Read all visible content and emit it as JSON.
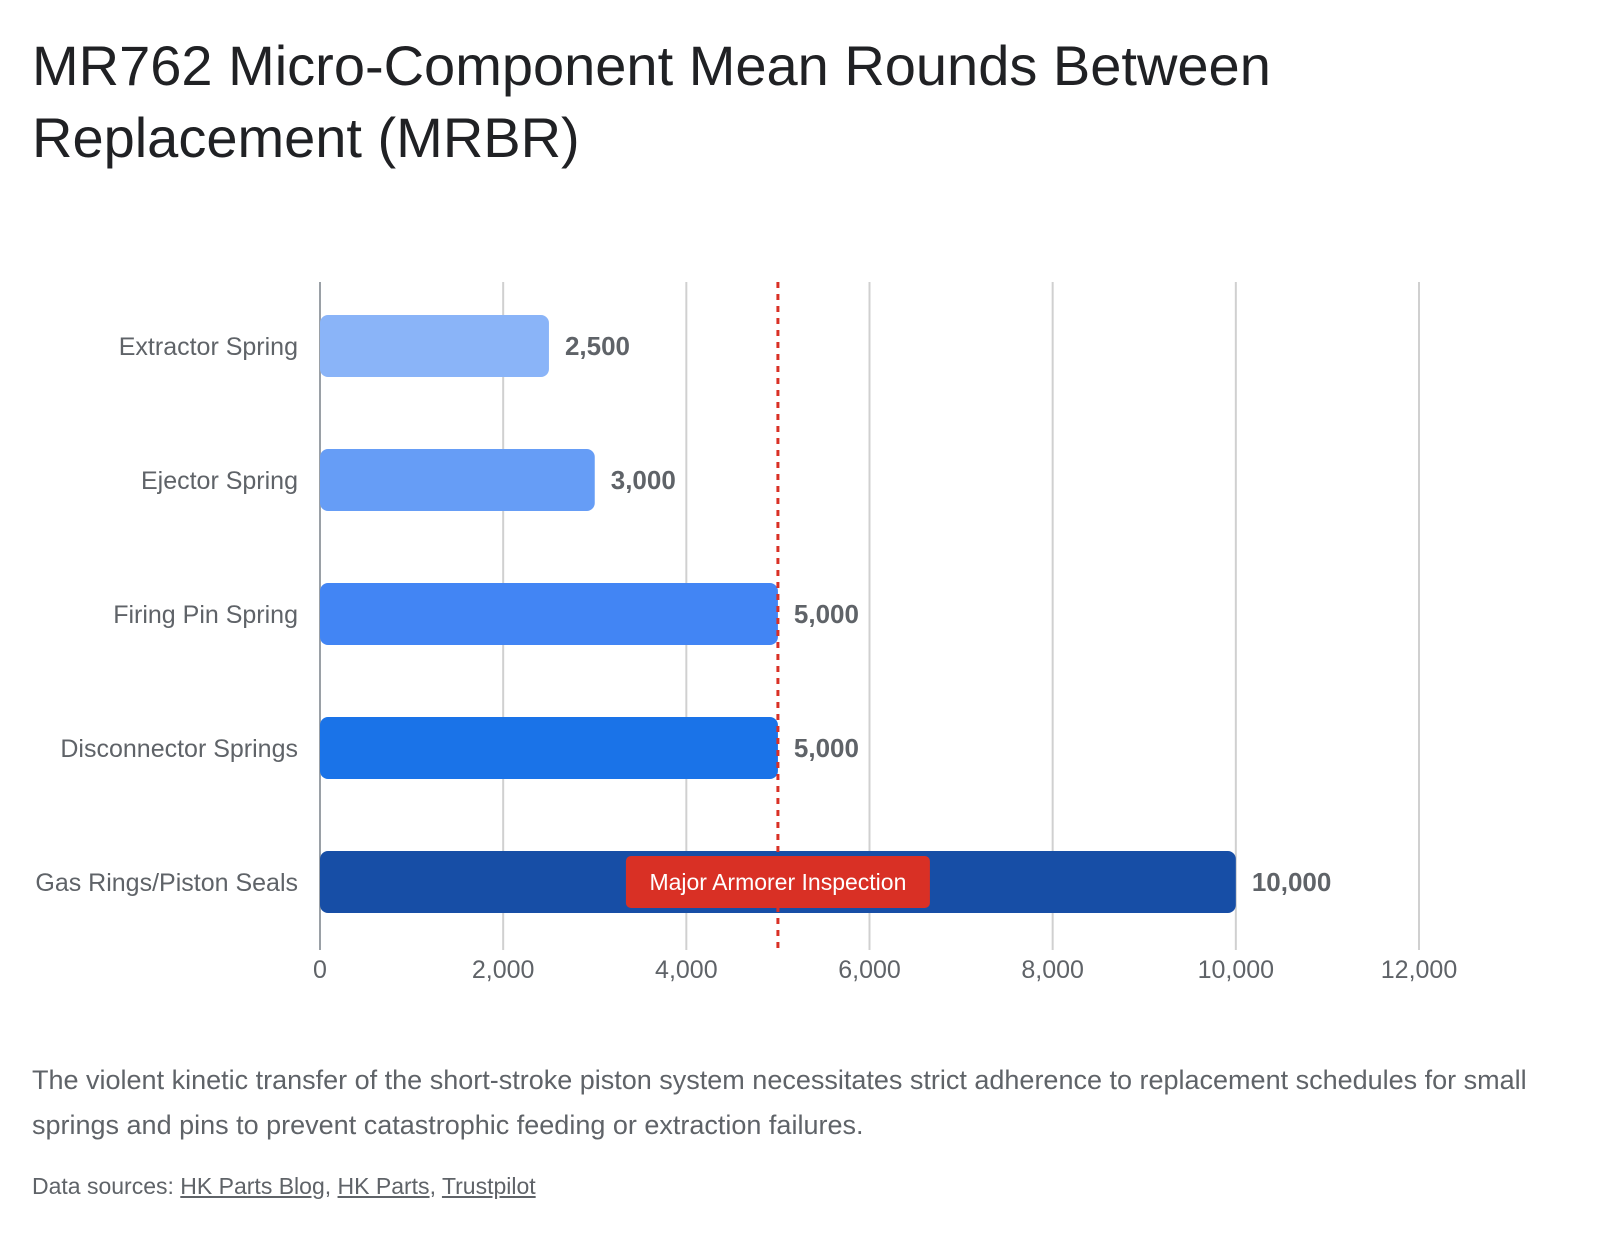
{
  "title": "MR762 Micro-Component Mean Rounds Between Replacement (MRBR)",
  "caption": "The violent kinetic transfer of the short-stroke piston system necessitates strict adherence to replacement schedules for small springs and pins to prevent catastrophic feeding or extraction failures.",
  "sources": {
    "prefix": "Data sources: ",
    "links": [
      "HK Parts Blog",
      "HK Parts",
      "Trustpilot"
    ],
    "separator": ", "
  },
  "chart_data": {
    "type": "bar",
    "orientation": "horizontal",
    "categories": [
      "Extractor Spring",
      "Ejector Spring",
      "Firing Pin Spring",
      "Disconnector Springs",
      "Gas Rings/Piston Seals"
    ],
    "values": [
      2500,
      3000,
      5000,
      5000,
      10000
    ],
    "value_labels": [
      "2,500",
      "3,000",
      "5,000",
      "5,000",
      "10,000"
    ],
    "bar_colors": [
      "#8ab4f8",
      "#669df6",
      "#4285f4",
      "#1a73e8",
      "#174ea6"
    ],
    "xlim": [
      0,
      12000
    ],
    "x_ticks": [
      0,
      2000,
      4000,
      6000,
      8000,
      10000,
      12000
    ],
    "x_tick_labels": [
      "0",
      "2,000",
      "4,000",
      "6,000",
      "8,000",
      "10,000",
      "12,000"
    ],
    "grid": true,
    "reference_line": {
      "value": 5000,
      "label": "Major Armorer Inspection",
      "color": "#d93025",
      "style": "dotted"
    },
    "title": "MR762 Micro-Component Mean Rounds Between Replacement (MRBR)",
    "xlabel": "",
    "ylabel": ""
  }
}
